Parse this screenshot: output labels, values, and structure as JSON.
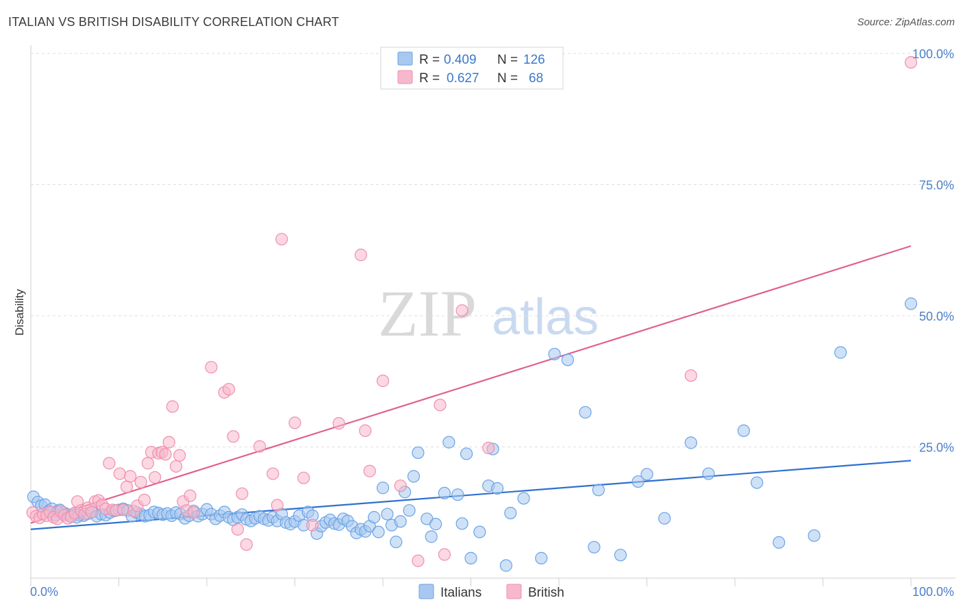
{
  "title": "ITALIAN VS BRITISH DISABILITY CORRELATION CHART",
  "source": "Source: ZipAtlas.com",
  "watermark": {
    "zip": "ZIP",
    "atlas": "atlas"
  },
  "legend_box": {
    "rows": [
      {
        "r_label": "R =",
        "r_value": "0.409",
        "n_label": "N =",
        "n_value": "126",
        "color": "#a8c8f0"
      },
      {
        "r_label": "R =",
        "r_value": "0.627",
        "n_label": "N =",
        "n_value": "68",
        "color": "#f7b8cb"
      }
    ]
  },
  "bottom_legend": [
    {
      "label": "Italians",
      "color": "#a8c8f0"
    },
    {
      "label": "British",
      "color": "#f7b8cb"
    }
  ],
  "chart_data": {
    "type": "scatter",
    "title": "ITALIAN VS BRITISH DISABILITY CORRELATION CHART",
    "xlabel": "",
    "ylabel": "Disability",
    "xlim": [
      0,
      100
    ],
    "ylim": [
      0,
      100
    ],
    "x_tick_labels": [
      {
        "value": 0,
        "label": "0.0%"
      },
      {
        "value": 100,
        "label": "100.0%"
      }
    ],
    "y_tick_labels": [
      {
        "value": 25,
        "label": "25.0%"
      },
      {
        "value": 50,
        "label": "50.0%"
      },
      {
        "value": 75,
        "label": "75.0%"
      },
      {
        "value": 100,
        "label": "100.0%"
      }
    ],
    "grid": true,
    "legend_position": "top-center",
    "series": [
      {
        "name": "Italians",
        "color": "#6aa3e6",
        "fill": "#a8c8f0",
        "line_color": "#2f6fcf",
        "trend": {
          "x": [
            0,
            100
          ],
          "y": [
            9.3,
            22.4
          ]
        },
        "points": [
          [
            0.3,
            15.5
          ],
          [
            0.8,
            14.5
          ],
          [
            1.2,
            13.8
          ],
          [
            1.6,
            14.0
          ],
          [
            2.0,
            12.8
          ],
          [
            2.4,
            13.2
          ],
          [
            2.8,
            12.0
          ],
          [
            3.3,
            13.0
          ],
          [
            3.7,
            12.5
          ],
          [
            4.1,
            12.2
          ],
          [
            4.5,
            11.8
          ],
          [
            5.0,
            12.4
          ],
          [
            5.5,
            12.0
          ],
          [
            6.0,
            11.9
          ],
          [
            6.5,
            12.3
          ],
          [
            7.0,
            12.6
          ],
          [
            7.5,
            11.8
          ],
          [
            8.0,
            12.2
          ],
          [
            8.5,
            12.0
          ],
          [
            9.0,
            12.5
          ],
          [
            9.5,
            12.8
          ],
          [
            10.0,
            13.0
          ],
          [
            10.5,
            13.2
          ],
          [
            11.0,
            12.9
          ],
          [
            11.5,
            11.8
          ],
          [
            12.0,
            12.5
          ],
          [
            12.5,
            12.2
          ],
          [
            13.0,
            11.8
          ],
          [
            13.5,
            12.0
          ],
          [
            14.0,
            12.6
          ],
          [
            14.5,
            12.4
          ],
          [
            15.0,
            12.1
          ],
          [
            15.5,
            12.3
          ],
          [
            16.0,
            11.9
          ],
          [
            16.5,
            12.5
          ],
          [
            17.0,
            12.2
          ],
          [
            17.5,
            11.4
          ],
          [
            18.0,
            11.9
          ],
          [
            18.5,
            12.8
          ],
          [
            19.0,
            11.8
          ],
          [
            19.5,
            12.2
          ],
          [
            20.0,
            13.1
          ],
          [
            20.5,
            12.2
          ],
          [
            21.0,
            11.3
          ],
          [
            21.5,
            11.9
          ],
          [
            22.0,
            12.6
          ],
          [
            22.5,
            11.6
          ],
          [
            23.0,
            11.1
          ],
          [
            23.5,
            11.6
          ],
          [
            24.0,
            12.1
          ],
          [
            24.5,
            11.2
          ],
          [
            25.0,
            10.9
          ],
          [
            25.5,
            11.4
          ],
          [
            26.0,
            11.8
          ],
          [
            26.5,
            11.3
          ],
          [
            27.0,
            11.0
          ],
          [
            27.5,
            11.6
          ],
          [
            28.0,
            10.9
          ],
          [
            28.5,
            12.2
          ],
          [
            29.0,
            10.6
          ],
          [
            29.5,
            10.3
          ],
          [
            30.0,
            10.8
          ],
          [
            30.5,
            11.9
          ],
          [
            31.0,
            10.1
          ],
          [
            31.5,
            12.6
          ],
          [
            32.0,
            11.9
          ],
          [
            32.5,
            8.5
          ],
          [
            33.0,
            9.9
          ],
          [
            33.5,
            10.6
          ],
          [
            34.0,
            11.1
          ],
          [
            34.5,
            10.4
          ],
          [
            35.0,
            10.2
          ],
          [
            35.5,
            11.3
          ],
          [
            36.0,
            10.9
          ],
          [
            36.5,
            9.9
          ],
          [
            37.0,
            8.6
          ],
          [
            37.5,
            9.3
          ],
          [
            38.0,
            8.9
          ],
          [
            38.5,
            9.9
          ],
          [
            39.0,
            11.6
          ],
          [
            39.5,
            8.8
          ],
          [
            40.0,
            17.2
          ],
          [
            40.5,
            12.2
          ],
          [
            41.0,
            10.1
          ],
          [
            41.5,
            6.9
          ],
          [
            42.0,
            10.8
          ],
          [
            42.5,
            16.4
          ],
          [
            43.0,
            12.9
          ],
          [
            43.5,
            19.4
          ],
          [
            44.0,
            23.9
          ],
          [
            45.0,
            11.3
          ],
          [
            45.5,
            7.9
          ],
          [
            46.0,
            10.3
          ],
          [
            47.0,
            16.2
          ],
          [
            47.5,
            25.9
          ],
          [
            48.5,
            15.9
          ],
          [
            49.0,
            10.4
          ],
          [
            49.5,
            23.7
          ],
          [
            50.0,
            3.8
          ],
          [
            51.0,
            8.8
          ],
          [
            52.0,
            17.6
          ],
          [
            52.5,
            24.6
          ],
          [
            53.0,
            17.1
          ],
          [
            54.0,
            2.4
          ],
          [
            54.5,
            12.4
          ],
          [
            56.0,
            15.2
          ],
          [
            58.0,
            3.8
          ],
          [
            59.5,
            42.7
          ],
          [
            61.0,
            41.6
          ],
          [
            63.0,
            31.6
          ],
          [
            64.0,
            5.9
          ],
          [
            64.5,
            16.8
          ],
          [
            67.0,
            4.4
          ],
          [
            69.0,
            18.4
          ],
          [
            70.0,
            19.8
          ],
          [
            72.0,
            11.4
          ],
          [
            75.0,
            25.8
          ],
          [
            77.0,
            19.9
          ],
          [
            81.0,
            28.1
          ],
          [
            82.5,
            18.2
          ],
          [
            85.0,
            6.8
          ],
          [
            89.0,
            8.1
          ],
          [
            92.0,
            43.0
          ],
          [
            100.0,
            52.3
          ],
          [
            3.0,
            12.7
          ],
          [
            5.2,
            11.6
          ]
        ]
      },
      {
        "name": "British",
        "color": "#ef8fae",
        "fill": "#f7b8cb",
        "line_color": "#e0608c",
        "trend": {
          "x": [
            0,
            100
          ],
          "y": [
            10.5,
            63.3
          ]
        },
        "points": [
          [
            0.2,
            12.5
          ],
          [
            0.6,
            11.8
          ],
          [
            1.0,
            11.5
          ],
          [
            1.4,
            12.2
          ],
          [
            1.8,
            11.9
          ],
          [
            2.2,
            12.6
          ],
          [
            2.6,
            11.6
          ],
          [
            3.0,
            11.3
          ],
          [
            3.4,
            12.8
          ],
          [
            3.8,
            12.0
          ],
          [
            4.2,
            11.4
          ],
          [
            4.6,
            11.7
          ],
          [
            5.0,
            12.4
          ],
          [
            5.3,
            14.6
          ],
          [
            5.7,
            12.9
          ],
          [
            6.1,
            12.2
          ],
          [
            6.5,
            13.4
          ],
          [
            6.9,
            12.6
          ],
          [
            7.3,
            14.6
          ],
          [
            7.7,
            14.8
          ],
          [
            8.1,
            14.0
          ],
          [
            8.5,
            13.2
          ],
          [
            8.9,
            21.9
          ],
          [
            9.3,
            13.0
          ],
          [
            9.7,
            12.9
          ],
          [
            10.1,
            19.9
          ],
          [
            10.5,
            13.0
          ],
          [
            10.9,
            17.4
          ],
          [
            11.3,
            19.4
          ],
          [
            11.7,
            12.8
          ],
          [
            12.1,
            13.8
          ],
          [
            12.5,
            18.3
          ],
          [
            12.9,
            14.9
          ],
          [
            13.3,
            21.9
          ],
          [
            13.7,
            24.0
          ],
          [
            14.1,
            19.2
          ],
          [
            14.5,
            23.8
          ],
          [
            14.9,
            24.0
          ],
          [
            15.3,
            23.6
          ],
          [
            15.7,
            25.9
          ],
          [
            16.1,
            32.7
          ],
          [
            16.5,
            21.3
          ],
          [
            16.9,
            23.4
          ],
          [
            17.3,
            14.6
          ],
          [
            17.7,
            12.9
          ],
          [
            18.1,
            15.7
          ],
          [
            18.5,
            12.5
          ],
          [
            20.5,
            40.2
          ],
          [
            22.0,
            35.4
          ],
          [
            22.5,
            36.0
          ],
          [
            23.0,
            27.0
          ],
          [
            23.5,
            9.3
          ],
          [
            24.0,
            16.1
          ],
          [
            24.5,
            6.4
          ],
          [
            26.0,
            25.1
          ],
          [
            27.5,
            19.9
          ],
          [
            28.0,
            13.9
          ],
          [
            28.5,
            64.6
          ],
          [
            30.0,
            29.6
          ],
          [
            31.0,
            19.1
          ],
          [
            32.0,
            10.1
          ],
          [
            35.0,
            29.5
          ],
          [
            37.5,
            61.6
          ],
          [
            38.0,
            28.1
          ],
          [
            38.5,
            20.4
          ],
          [
            40.0,
            37.6
          ],
          [
            42.0,
            17.6
          ],
          [
            44.0,
            3.3
          ]
        ],
        "extra_points": [
          [
            46.5,
            33.0
          ],
          [
            47.0,
            4.5
          ],
          [
            49.0,
            51.0
          ],
          [
            52.0,
            24.8
          ],
          [
            75.0,
            38.6
          ],
          [
            100.0,
            98.3
          ]
        ]
      }
    ]
  }
}
